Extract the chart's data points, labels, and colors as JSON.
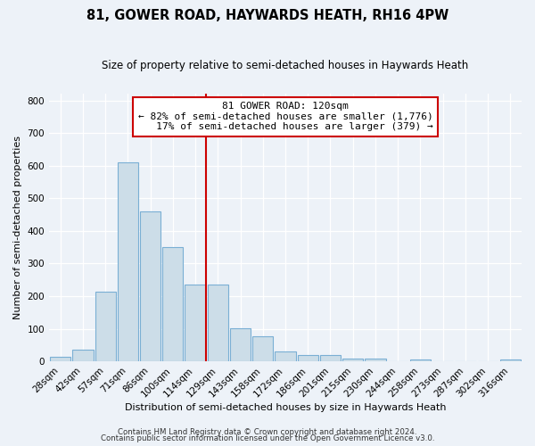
{
  "title": "81, GOWER ROAD, HAYWARDS HEATH, RH16 4PW",
  "subtitle": "Size of property relative to semi-detached houses in Haywards Heath",
  "xlabel": "Distribution of semi-detached houses by size in Haywards Heath",
  "ylabel": "Number of semi-detached properties",
  "categories": [
    "28sqm",
    "42sqm",
    "57sqm",
    "71sqm",
    "86sqm",
    "100sqm",
    "114sqm",
    "129sqm",
    "143sqm",
    "158sqm",
    "172sqm",
    "186sqm",
    "201sqm",
    "215sqm",
    "230sqm",
    "244sqm",
    "258sqm",
    "273sqm",
    "287sqm",
    "302sqm",
    "316sqm"
  ],
  "values": [
    13,
    35,
    215,
    610,
    460,
    350,
    235,
    235,
    103,
    78,
    30,
    20,
    20,
    10,
    8,
    0,
    5,
    0,
    0,
    0,
    7
  ],
  "bar_color": "#ccdde8",
  "bar_edge_color": "#7aafd4",
  "vline_color": "#cc0000",
  "annotation_line1": "81 GOWER ROAD: 120sqm",
  "annotation_line2": "← 82% of semi-detached houses are smaller (1,776)",
  "annotation_line3": "   17% of semi-detached houses are larger (379) →",
  "annotation_box_color": "#ffffff",
  "annotation_box_edge": "#cc0000",
  "ylim": [
    0,
    820
  ],
  "yticks": [
    0,
    100,
    200,
    300,
    400,
    500,
    600,
    700,
    800
  ],
  "footer1": "Contains HM Land Registry data © Crown copyright and database right 2024.",
  "footer2": "Contains public sector information licensed under the Open Government Licence v3.0.",
  "bg_color": "#edf2f8",
  "plot_bg_color": "#edf2f8",
  "title_fontsize": 10.5,
  "subtitle_fontsize": 8.5,
  "axis_label_fontsize": 8,
  "tick_fontsize": 7.5,
  "footer_fontsize": 6.2,
  "annotation_fontsize": 8
}
